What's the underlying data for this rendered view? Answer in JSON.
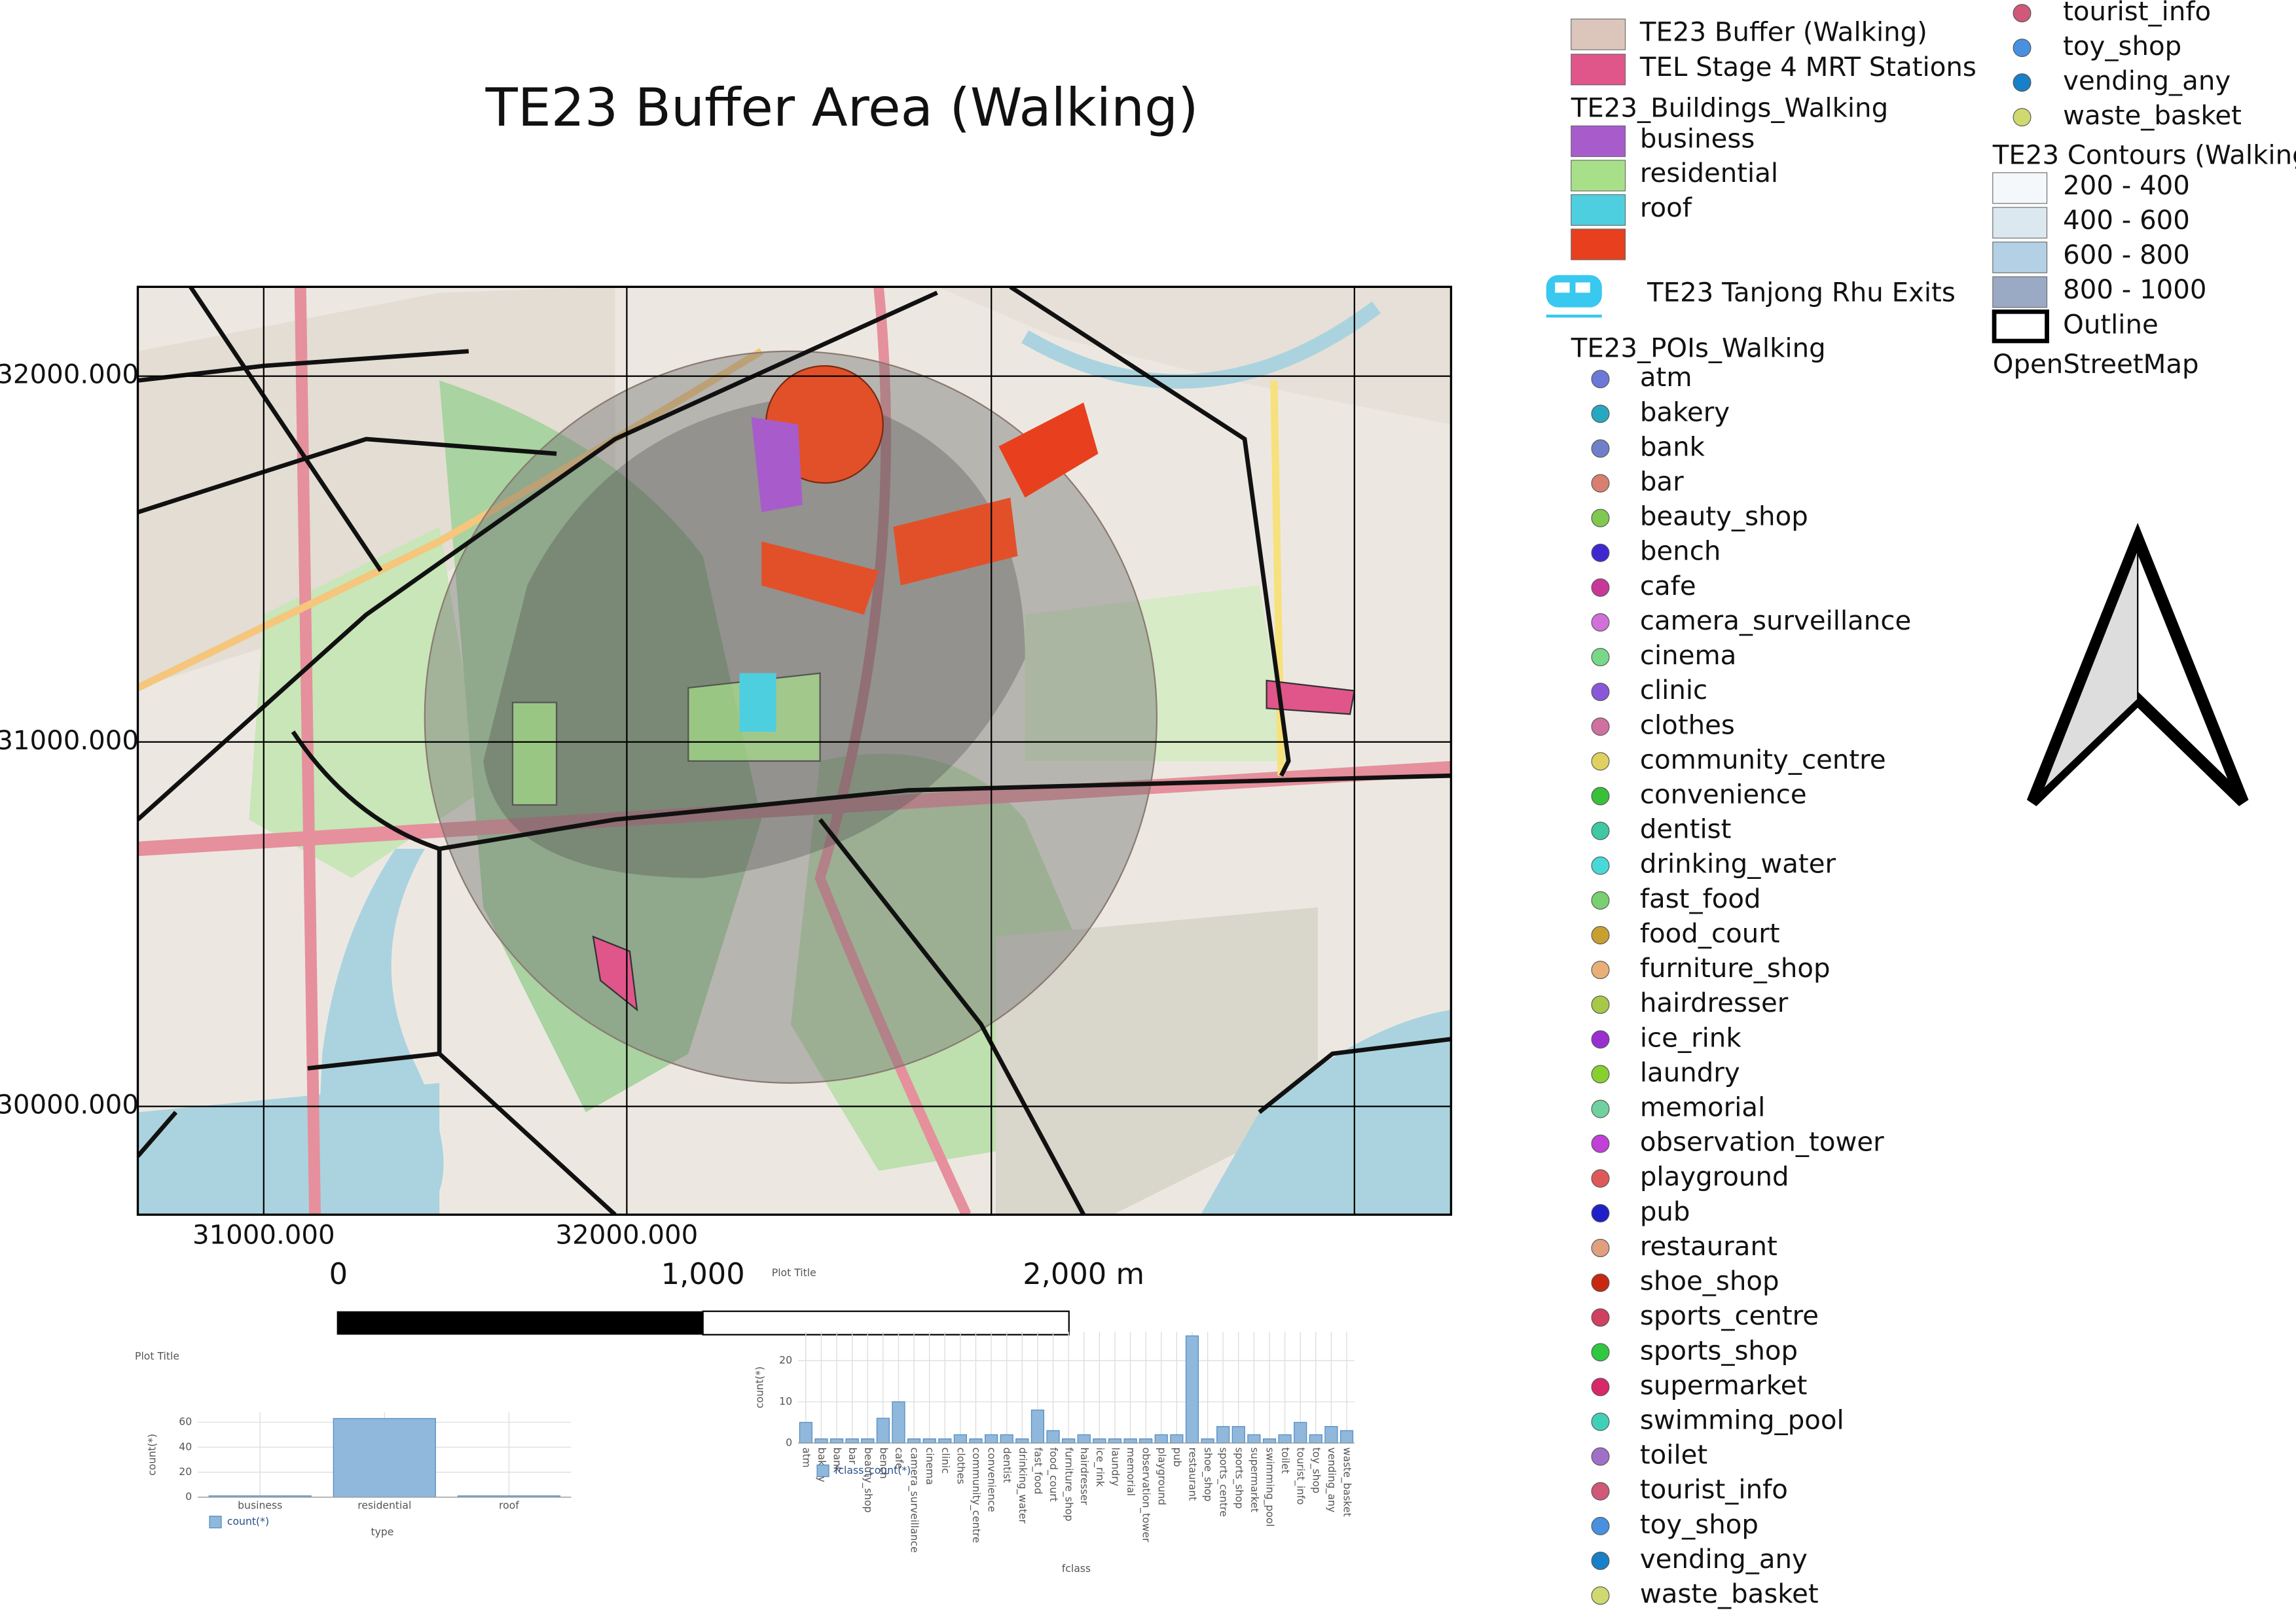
{
  "title": "TE23 Buffer Area (Walking)",
  "map": {
    "y_labels": [
      "32000.000",
      "31000.000",
      "30000.000"
    ],
    "x_labels": [
      "31000.000",
      "32000.000"
    ],
    "scalebar": [
      "0",
      "1,000",
      "2,000 m"
    ]
  },
  "legend": {
    "layers": [
      {
        "label": "TE23 Buffer (Walking)",
        "color": "#dcc6bb"
      },
      {
        "label": "TEL Stage 4 MRT Stations",
        "color": "#e0568a"
      }
    ],
    "buildings": {
      "title": "TE23_Buildings_Walking",
      "items": [
        {
          "label": "business",
          "color": "#a85ccc"
        },
        {
          "label": "residential",
          "color": "#a8e08a"
        },
        {
          "label": "roof",
          "color": "#4ecfe0"
        },
        {
          "color": "#e8401e"
        }
      ]
    },
    "exits": "TE23 Tanjong Rhu Exits",
    "pois": {
      "title": "TE23_POIs_Walking",
      "items": [
        {
          "label": "atm",
          "color": "#6c78d8"
        },
        {
          "label": "bakery",
          "color": "#28a8c0"
        },
        {
          "label": "bank",
          "color": "#7080c8"
        },
        {
          "label": "bar",
          "color": "#d88070"
        },
        {
          "label": "beauty_shop",
          "color": "#80c850"
        },
        {
          "label": "bench",
          "color": "#4028d0"
        },
        {
          "label": "cafe",
          "color": "#c83898"
        },
        {
          "label": "camera_surveillance",
          "color": "#d070d8"
        },
        {
          "label": "cinema",
          "color": "#78d888"
        },
        {
          "label": "clinic",
          "color": "#8858d8"
        },
        {
          "label": "clothes",
          "color": "#d070a0"
        },
        {
          "label": "community_centre",
          "color": "#e0d060"
        },
        {
          "label": "convenience",
          "color": "#38c038"
        },
        {
          "label": "dentist",
          "color": "#40c8a0"
        },
        {
          "label": "drinking_water",
          "color": "#48d8d8"
        },
        {
          "label": "fast_food",
          "color": "#78d070"
        },
        {
          "label": "food_court",
          "color": "#c8a030"
        },
        {
          "label": "furniture_shop",
          "color": "#e8b078"
        },
        {
          "label": "hairdresser",
          "color": "#a8c848"
        },
        {
          "label": "ice_rink",
          "color": "#9830d0"
        },
        {
          "label": "laundry",
          "color": "#88d030"
        },
        {
          "label": "memorial",
          "color": "#70d0a0"
        },
        {
          "label": "observation_tower",
          "color": "#c040d8"
        },
        {
          "label": "playground",
          "color": "#e05858"
        },
        {
          "label": "pub",
          "color": "#2020c8"
        },
        {
          "label": "restaurant",
          "color": "#e0a080"
        },
        {
          "label": "shoe_shop",
          "color": "#c82810"
        },
        {
          "label": "sports_centre",
          "color": "#d04060"
        },
        {
          "label": "sports_shop",
          "color": "#30c840"
        },
        {
          "label": "supermarket",
          "color": "#d82868"
        },
        {
          "label": "swimming_pool",
          "color": "#40d0b8"
        },
        {
          "label": "toilet",
          "color": "#a070c8"
        },
        {
          "label": "tourist_info",
          "color": "#d05878"
        },
        {
          "label": "toy_shop",
          "color": "#4890e0"
        },
        {
          "label": "vending_any",
          "color": "#1880c8"
        },
        {
          "label": "waste_basket",
          "color": "#d0d870"
        }
      ]
    },
    "overflow": [
      {
        "label": "tourist_info",
        "color": "#d05878"
      },
      {
        "label": "toy_shop",
        "color": "#4890e0"
      },
      {
        "label": "vending_any",
        "color": "#1880c8"
      },
      {
        "label": "waste_basket",
        "color": "#d0d870"
      }
    ],
    "contours": {
      "title": "TE23 Contours (Walking)",
      "items": [
        {
          "label": "200 - 400",
          "color": "#f4f8fa"
        },
        {
          "label": "400 - 600",
          "color": "#dce8f0"
        },
        {
          "label": "600 - 800",
          "color": "#b4d0e4"
        },
        {
          "label": "800 - 1000",
          "color": "#9aaac4"
        }
      ],
      "outline": "Outline"
    },
    "basemap": "OpenStreetMap"
  },
  "chart_data": [
    {
      "type": "bar",
      "title": "Plot Title",
      "x_label": "type",
      "y_label": "count(*)",
      "legend": "count(*)",
      "color": "#8fb8dc",
      "categories": [
        "business",
        "residential",
        "roof"
      ],
      "values": [
        1,
        63,
        1
      ],
      "ylim": [
        0,
        68
      ],
      "yticks": [
        0,
        20,
        40,
        60
      ],
      "grid": true
    },
    {
      "type": "bar",
      "title": "Plot Title",
      "x_label": "fclass",
      "y_label": "count(*)",
      "legend": "fclass_count(*)",
      "color": "#8fb8dc",
      "categories": [
        "atm",
        "bakery",
        "bank",
        "bar",
        "beauty_shop",
        "bench",
        "cafe",
        "camera_surveillance",
        "cinema",
        "clinic",
        "clothes",
        "community_centre",
        "convenience",
        "dentist",
        "drinking_water",
        "fast_food",
        "food_court",
        "furniture_shop",
        "hairdresser",
        "ice_rink",
        "laundry",
        "memorial",
        "observation_tower",
        "playground",
        "pub",
        "restaurant",
        "shoe_shop",
        "sports_centre",
        "sports_shop",
        "supermarket",
        "swimming_pool",
        "toilet",
        "tourist_info",
        "toy_shop",
        "vending_any",
        "waste_basket"
      ],
      "values": [
        5,
        1,
        1,
        1,
        1,
        6,
        10,
        1,
        1,
        1,
        2,
        1,
        2,
        2,
        1,
        8,
        3,
        1,
        2,
        1,
        1,
        1,
        1,
        2,
        2,
        26,
        1,
        4,
        4,
        2,
        1,
        2,
        5,
        2,
        4,
        3
      ],
      "ylim": [
        0,
        27
      ],
      "yticks": [
        0,
        10,
        20
      ],
      "grid": true
    }
  ]
}
